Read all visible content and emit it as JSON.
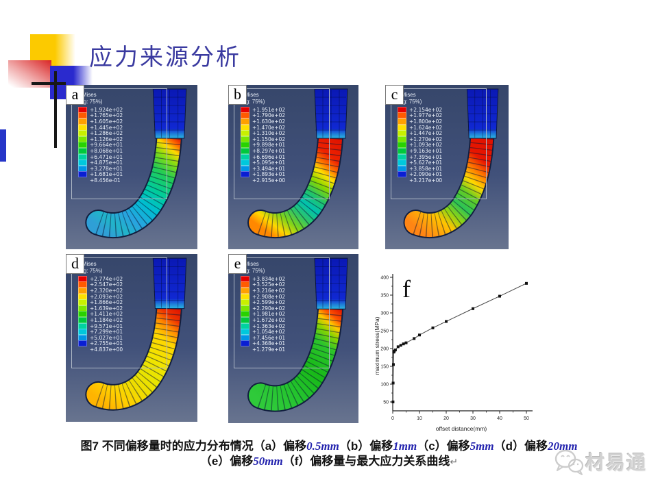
{
  "slide": {
    "title": "应力来源分析"
  },
  "legend": {
    "title": "S, Mises",
    "subtitle": "(Avg: 75%)",
    "colors": [
      "#e60000",
      "#ff5a00",
      "#ffa000",
      "#ffe000",
      "#c8f000",
      "#7ce600",
      "#28d200",
      "#00c83c",
      "#00d2a0",
      "#00c8dc",
      "#0096e6",
      "#0a1ed2"
    ]
  },
  "panels": [
    {
      "id": "a",
      "letter": "a",
      "values": [
        "+1.924e+02",
        "+1.765e+02",
        "+1.605e+02",
        "+1.445e+02",
        "+1.286e+02",
        "+1.126e+02",
        "+9.664e+01",
        "+8.068e+01",
        "+6.471e+01",
        "+4.875e+01",
        "+3.278e+01",
        "+1.681e+01",
        "+8.456e-01"
      ],
      "pipe_stops": [
        [
          0,
          "#dd1100"
        ],
        [
          0.06,
          "#ff6600"
        ],
        [
          0.12,
          "#ffd900"
        ],
        [
          0.2,
          "#88dd11"
        ],
        [
          0.32,
          "#22cc55"
        ],
        [
          0.48,
          "#00cc9d"
        ],
        [
          0.62,
          "#00bed2"
        ],
        [
          0.78,
          "#29a3e0"
        ],
        [
          0.9,
          "#21b4c9"
        ],
        [
          1,
          "#2f9fd6"
        ]
      ]
    },
    {
      "id": "b",
      "letter": "b",
      "values": [
        "+1.951e+02",
        "+1.790e+02",
        "+1.630e+02",
        "+1.470e+02",
        "+1.310e+02",
        "+1.150e+02",
        "+9.898e+01",
        "+8.297e+01",
        "+6.696e+01",
        "+5.095e+01",
        "+3.494e+01",
        "+1.893e+01",
        "+2.915e+00"
      ],
      "pipe_stops": [
        [
          0,
          "#dd1100"
        ],
        [
          0.18,
          "#ee2200"
        ],
        [
          0.26,
          "#ff7700"
        ],
        [
          0.33,
          "#ffe000"
        ],
        [
          0.42,
          "#88d800"
        ],
        [
          0.52,
          "#22c46a"
        ],
        [
          0.62,
          "#00c2b0"
        ],
        [
          0.72,
          "#2cc46a"
        ],
        [
          0.82,
          "#7fd41a"
        ],
        [
          0.92,
          "#ffd800"
        ],
        [
          1,
          "#ff8800"
        ]
      ]
    },
    {
      "id": "c",
      "letter": "c",
      "values": [
        "+2.154e+02",
        "+1.977e+02",
        "+1.800e+02",
        "+1.624e+02",
        "+1.447e+02",
        "+1.270e+02",
        "+1.093e+02",
        "+9.163e+01",
        "+7.395e+01",
        "+5.627e+01",
        "+3.858e+01",
        "+2.090e+01",
        "+3.217e+00"
      ],
      "pipe_stops": [
        [
          0,
          "#dd1100"
        ],
        [
          0.2,
          "#e81600"
        ],
        [
          0.3,
          "#ff7700"
        ],
        [
          0.4,
          "#ffd900"
        ],
        [
          0.5,
          "#66cc22"
        ],
        [
          0.62,
          "#2bc455"
        ],
        [
          0.72,
          "#8fd414"
        ],
        [
          0.82,
          "#ffc400"
        ],
        [
          1,
          "#ff8514"
        ]
      ]
    },
    {
      "id": "d",
      "letter": "d",
      "values": [
        "+2.774e+02",
        "+2.547e+02",
        "+2.320e+02",
        "+2.093e+02",
        "+1.866e+02",
        "+1.639e+02",
        "+1.411e+02",
        "+1.184e+02",
        "+9.571e+01",
        "+7.299e+01",
        "+5.027e+01",
        "+2.755e+01",
        "+4.837e+00"
      ],
      "pipe_stops": [
        [
          0,
          "#dd1100"
        ],
        [
          0.1,
          "#ee3300"
        ],
        [
          0.18,
          "#ff8800"
        ],
        [
          0.28,
          "#ffd500"
        ],
        [
          0.45,
          "#f2e400"
        ],
        [
          0.6,
          "#e8e400"
        ],
        [
          0.75,
          "#f0dc00"
        ],
        [
          0.88,
          "#ffcf00"
        ],
        [
          1,
          "#ffb400"
        ]
      ]
    },
    {
      "id": "e",
      "letter": "e",
      "values": [
        "+3.834e+02",
        "+3.525e+02",
        "+3.216e+02",
        "+2.908e+02",
        "+2.599e+02",
        "+2.290e+02",
        "+1.981e+02",
        "+1.672e+02",
        "+1.363e+02",
        "+1.054e+02",
        "+7.456e+01",
        "+4.368e+01",
        "+1.279e+01"
      ],
      "pipe_stops": [
        [
          0,
          "#dd1100"
        ],
        [
          0.09,
          "#ff5500"
        ],
        [
          0.15,
          "#ffc800"
        ],
        [
          0.22,
          "#8ad400"
        ],
        [
          0.32,
          "#2cc42c"
        ],
        [
          0.55,
          "#18b918"
        ],
        [
          0.75,
          "#22c22c"
        ],
        [
          1,
          "#2fca3a"
        ]
      ]
    }
  ],
  "cap_stops": [
    [
      0,
      "#0a18b4"
    ],
    [
      0.78,
      "#1028d2"
    ],
    [
      0.88,
      "#1e7ad8"
    ],
    [
      1,
      "#2ec8e0"
    ]
  ],
  "chart_data": {
    "type": "scatter",
    "label": "f",
    "xlabel": "offset distance(mm)",
    "ylabel": "maximum stress(MPa)",
    "xticks": [
      0,
      10,
      20,
      30,
      40,
      50
    ],
    "yticks": [
      50,
      100,
      150,
      200,
      250,
      300,
      350,
      400
    ],
    "xlim": [
      0,
      52
    ],
    "ylim": [
      25,
      420
    ],
    "grid": false,
    "points": [
      [
        0.1,
        50
      ],
      [
        0.15,
        103
      ],
      [
        0.25,
        155
      ],
      [
        0.4,
        190
      ],
      [
        0.6,
        193
      ],
      [
        1,
        196
      ],
      [
        2,
        205
      ],
      [
        3,
        209
      ],
      [
        4,
        213
      ],
      [
        5,
        216
      ],
      [
        8,
        228
      ],
      [
        10,
        238
      ],
      [
        15,
        258
      ],
      [
        20,
        276
      ],
      [
        30,
        312
      ],
      [
        40,
        347
      ],
      [
        50,
        383
      ]
    ]
  },
  "caption": {
    "line1": [
      {
        "t": "图7 不同偏移量时的应力分布情况（a）偏移",
        "s": "cn"
      },
      {
        "t": "0.5mm",
        "s": "val"
      },
      {
        "t": "（b）偏移",
        "s": "cn"
      },
      {
        "t": "1mm",
        "s": "val"
      },
      {
        "t": "（c）偏移",
        "s": "cn"
      },
      {
        "t": "5mm",
        "s": "val"
      },
      {
        "t": "（d）偏移",
        "s": "cn"
      },
      {
        "t": "20mm",
        "s": "val"
      }
    ],
    "line2": [
      {
        "t": "（e）偏移",
        "s": "cn"
      },
      {
        "t": "50mm",
        "s": "val"
      },
      {
        "t": "（f）偏移量与最大应力关系曲线",
        "s": "cn"
      },
      {
        "t": "↵",
        "s": "ret"
      }
    ]
  },
  "watermark": {
    "text": "材易通"
  }
}
